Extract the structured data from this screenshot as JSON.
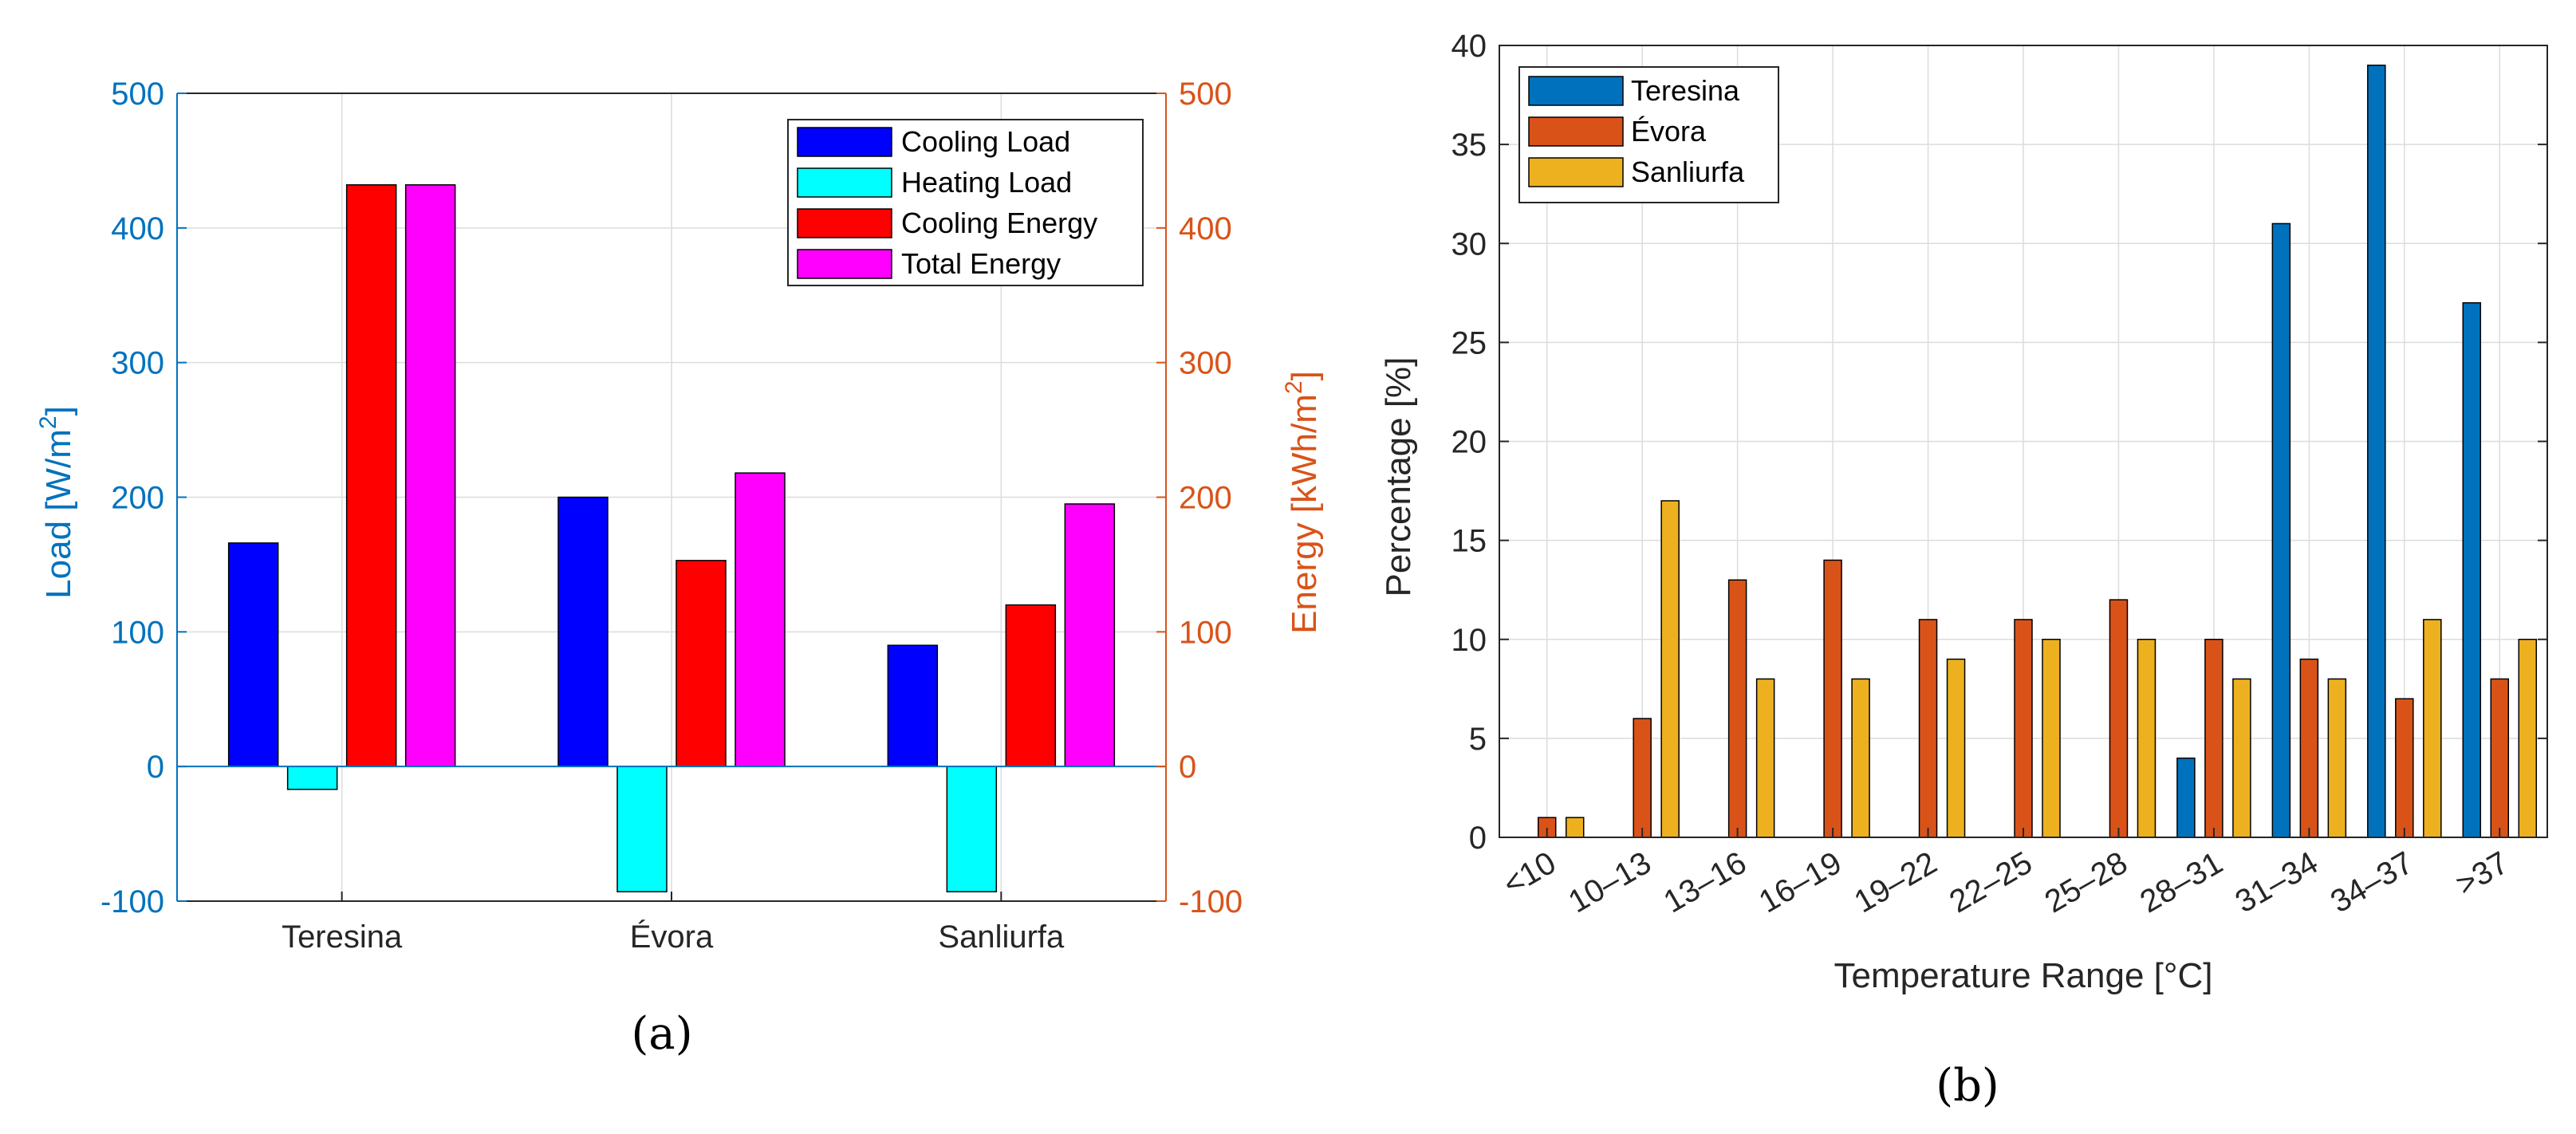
{
  "chart_data": [
    {
      "panel": "(a)",
      "type": "bar",
      "categories": [
        "Teresina",
        "Évora",
        "Sanliurfa"
      ],
      "yaxis_left": {
        "label": "Load [W/m",
        "label_sup": "2",
        "label_end": "]",
        "lim": [
          -100,
          500
        ],
        "ticks": [
          -100,
          0,
          100,
          200,
          300,
          400,
          500
        ],
        "tick_labels": [
          "-100",
          "0",
          "100",
          "200",
          "300",
          "400",
          "500"
        ],
        "color": "#0072BD"
      },
      "yaxis_right": {
        "label": "Energy [kWh/m",
        "label_sup": "2",
        "label_end": "]",
        "lim": [
          -100,
          500
        ],
        "ticks": [
          -100,
          0,
          100,
          200,
          300,
          400,
          500
        ],
        "tick_labels": [
          "-100",
          "0",
          "100",
          "200",
          "300",
          "400",
          "500"
        ],
        "color": "#D95319"
      },
      "series": [
        {
          "name": "Cooling Load",
          "color": "#0000FF",
          "values": [
            166,
            200,
            90
          ]
        },
        {
          "name": "Heating Load",
          "color": "#00FFFF",
          "values": [
            -17,
            -93,
            -93
          ]
        },
        {
          "name": "Cooling Energy",
          "color": "#FF0000",
          "values": [
            432,
            153,
            120
          ]
        },
        {
          "name": "Total Energy",
          "color": "#FF00FF",
          "values": [
            432,
            218,
            195
          ]
        }
      ],
      "legend_location": "top-right",
      "grid": true
    },
    {
      "panel": "(b)",
      "type": "bar",
      "categories": [
        "<10",
        "10–13",
        "13–16",
        "16–19",
        "19–22",
        "22–25",
        "25–28",
        "28–31",
        "31–34",
        "34–37",
        ">37"
      ],
      "xlabel": "Temperature Range [°C]",
      "ylabel": "Percentage [%]",
      "ylim": [
        0,
        40
      ],
      "yticks": [
        0,
        5,
        10,
        15,
        20,
        25,
        30,
        35,
        40
      ],
      "ytick_labels": [
        "0",
        "5",
        "10",
        "15",
        "20",
        "25",
        "30",
        "35",
        "40"
      ],
      "series": [
        {
          "name": "Teresina",
          "color": "#0072BD",
          "values": [
            0,
            0,
            0,
            0,
            0,
            0,
            0,
            4,
            31,
            39,
            27
          ]
        },
        {
          "name": "Évora",
          "color": "#D95319",
          "values": [
            1,
            6,
            13,
            14,
            11,
            11,
            12,
            10,
            9,
            7,
            8
          ]
        },
        {
          "name": "Sanliurfa",
          "color": "#EDB120",
          "values": [
            1,
            17,
            8,
            8,
            9,
            10,
            10,
            8,
            8,
            11,
            10
          ]
        }
      ],
      "legend_location": "top-left",
      "grid": true
    }
  ]
}
